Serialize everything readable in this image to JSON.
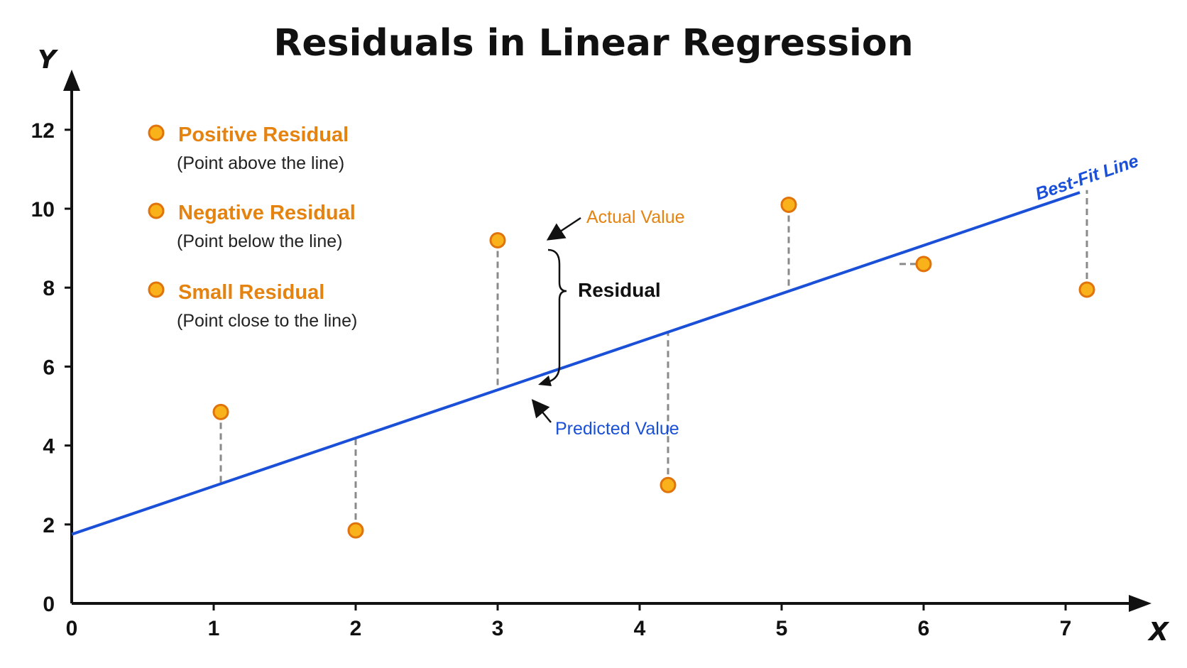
{
  "chart_data": {
    "type": "scatter",
    "title": "Residuals in Linear Regression",
    "xlabel": "X",
    "ylabel": "Y",
    "xlim": [
      0,
      7.5
    ],
    "ylim": [
      0,
      13
    ],
    "x_ticks": [
      "0",
      "1",
      "2",
      "3",
      "4",
      "5",
      "6",
      "7"
    ],
    "y_ticks": [
      "0",
      "2",
      "4",
      "6",
      "8",
      "10",
      "12"
    ],
    "grid": false,
    "points": [
      {
        "x": 1.05,
        "y": 4.85
      },
      {
        "x": 2.0,
        "y": 1.85
      },
      {
        "x": 3.0,
        "y": 9.2
      },
      {
        "x": 4.2,
        "y": 3.0
      },
      {
        "x": 5.05,
        "y": 10.1
      },
      {
        "x": 6.0,
        "y": 8.6
      },
      {
        "x": 7.15,
        "y": 7.95
      }
    ],
    "best_fit": {
      "label": "Best-Fit Line",
      "intercept": 1.75,
      "slope": 1.22
    },
    "legend": [
      {
        "label": "Positive Residual",
        "sub": "(Point above the line)"
      },
      {
        "label": "Negative Residual",
        "sub": "(Point below the line)"
      },
      {
        "label": "Small Residual",
        "sub": "(Point close to the line)"
      }
    ],
    "annotations": {
      "actual": "Actual Value",
      "predicted": "Predicted Value",
      "residual": "Residual"
    },
    "colors": {
      "line": "#1a4fd8",
      "point_fill": "#f9b21a",
      "point_stroke": "#e0730b",
      "legend_text": "#e58311",
      "residual": "#8a8a8a",
      "axis": "#111111"
    }
  }
}
